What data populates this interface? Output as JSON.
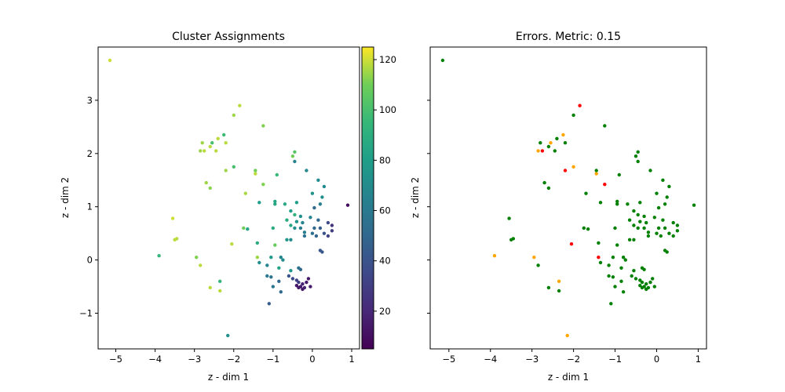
{
  "chart_data": [
    {
      "type": "scatter",
      "title": "Cluster Assignments",
      "xlabel": "z - dim 1",
      "ylabel": "z - dim 2",
      "xlim": [
        -5.45,
        1.2
      ],
      "ylim": [
        -1.67,
        4.0
      ],
      "xticks": [
        -5,
        -4,
        -3,
        -2,
        -1,
        0,
        1
      ],
      "yticks": [
        -1,
        0,
        1,
        2,
        3
      ],
      "colormap": "viridis",
      "colorbar": {
        "range": [
          5,
          125
        ],
        "ticks": [
          20,
          40,
          60,
          80,
          100,
          120
        ]
      },
      "points": [
        [
          -5.15,
          3.75,
          120
        ],
        [
          -1.85,
          2.9,
          118
        ],
        [
          -2.0,
          2.72,
          115
        ],
        [
          -1.25,
          2.52,
          112
        ],
        [
          -2.25,
          2.35,
          97
        ],
        [
          -2.4,
          2.28,
          118
        ],
        [
          -2.55,
          2.2,
          100
        ],
        [
          -2.2,
          2.2,
          118
        ],
        [
          -2.8,
          2.2,
          115
        ],
        [
          -2.6,
          2.13,
          118
        ],
        [
          -2.75,
          2.05,
          118
        ],
        [
          -2.85,
          2.05,
          115
        ],
        [
          -2.45,
          2.05,
          118
        ],
        [
          -0.45,
          2.03,
          104
        ],
        [
          -0.5,
          1.95,
          110
        ],
        [
          -2.0,
          1.75,
          100
        ],
        [
          -2.2,
          1.68,
          115
        ],
        [
          -1.45,
          1.68,
          110
        ],
        [
          -1.45,
          1.62,
          118
        ],
        [
          -0.9,
          1.6,
          95
        ],
        [
          -0.45,
          1.85,
          66
        ],
        [
          -0.15,
          1.68,
          68
        ],
        [
          0.15,
          1.5,
          70
        ],
        [
          -2.7,
          1.45,
          115
        ],
        [
          -2.6,
          1.35,
          113
        ],
        [
          -1.25,
          1.42,
          112
        ],
        [
          0.3,
          1.38,
          70
        ],
        [
          -1.7,
          1.25,
          116
        ],
        [
          0.0,
          1.25,
          74
        ],
        [
          0.25,
          1.18,
          72
        ],
        [
          -1.35,
          1.08,
          80
        ],
        [
          -0.95,
          1.1,
          85
        ],
        [
          -0.95,
          1.05,
          85
        ],
        [
          -0.7,
          1.05,
          86
        ],
        [
          -0.4,
          1.08,
          80
        ],
        [
          0.2,
          1.05,
          62
        ],
        [
          0.9,
          1.03,
          10
        ],
        [
          0.05,
          0.98,
          52
        ],
        [
          -0.55,
          0.92,
          80
        ],
        [
          -0.45,
          0.85,
          92
        ],
        [
          -0.3,
          0.82,
          72
        ],
        [
          -0.05,
          0.8,
          66
        ],
        [
          -3.55,
          0.78,
          120
        ],
        [
          -0.65,
          0.75,
          88
        ],
        [
          -0.4,
          0.72,
          74
        ],
        [
          -0.25,
          0.7,
          66
        ],
        [
          0.15,
          0.75,
          50
        ],
        [
          0.4,
          0.7,
          36
        ],
        [
          0.5,
          0.65,
          25
        ],
        [
          -0.55,
          0.65,
          85
        ],
        [
          -1.75,
          0.6,
          110
        ],
        [
          -1.65,
          0.58,
          84
        ],
        [
          -1.0,
          0.6,
          88
        ],
        [
          -0.45,
          0.6,
          72
        ],
        [
          -0.3,
          0.6,
          62
        ],
        [
          0.05,
          0.6,
          50
        ],
        [
          0.2,
          0.6,
          44
        ],
        [
          0.5,
          0.55,
          30
        ],
        [
          -0.2,
          0.52,
          62
        ],
        [
          0.3,
          0.5,
          40
        ],
        [
          0.0,
          0.5,
          55
        ],
        [
          -0.2,
          0.45,
          56
        ],
        [
          0.1,
          0.45,
          48
        ],
        [
          0.4,
          0.45,
          32
        ],
        [
          -3.45,
          0.4,
          118
        ],
        [
          -3.5,
          0.38,
          118
        ],
        [
          -0.65,
          0.38,
          76
        ],
        [
          -0.55,
          0.38,
          70
        ],
        [
          -2.05,
          0.3,
          118
        ],
        [
          -1.4,
          0.32,
          88
        ],
        [
          -0.95,
          0.28,
          108
        ],
        [
          0.2,
          0.18,
          42
        ],
        [
          0.25,
          0.15,
          42
        ],
        [
          -3.9,
          0.08,
          94
        ],
        [
          -2.95,
          0.05,
          112
        ],
        [
          -1.4,
          0.05,
          115
        ],
        [
          -1.05,
          0.05,
          78
        ],
        [
          -0.8,
          0.05,
          66
        ],
        [
          -0.75,
          0.0,
          70
        ],
        [
          -1.35,
          -0.05,
          72
        ],
        [
          -2.85,
          -0.1,
          118
        ],
        [
          -1.15,
          -0.1,
          66
        ],
        [
          -0.85,
          -0.15,
          84
        ],
        [
          -0.35,
          -0.15,
          55
        ],
        [
          -0.3,
          -0.18,
          50
        ],
        [
          -0.55,
          -0.2,
          76
        ],
        [
          -1.15,
          -0.3,
          60
        ],
        [
          -0.6,
          -0.3,
          40
        ],
        [
          -1.05,
          -0.32,
          56
        ],
        [
          -0.5,
          -0.35,
          36
        ],
        [
          -0.4,
          -0.38,
          32
        ],
        [
          -0.1,
          -0.35,
          14
        ],
        [
          -0.85,
          -0.4,
          50
        ],
        [
          -2.35,
          -0.4,
          95
        ],
        [
          -0.35,
          -0.42,
          30
        ],
        [
          -0.15,
          -0.42,
          14
        ],
        [
          -0.25,
          -0.45,
          18
        ],
        [
          -0.4,
          -0.48,
          14
        ],
        [
          -0.3,
          -0.5,
          14
        ],
        [
          -0.05,
          -0.5,
          16
        ],
        [
          -0.35,
          -0.52,
          14
        ],
        [
          -0.2,
          -0.52,
          18
        ],
        [
          -1.0,
          -0.5,
          58
        ],
        [
          -0.25,
          -0.55,
          15
        ],
        [
          -0.8,
          -0.6,
          50
        ],
        [
          -2.6,
          -0.52,
          118
        ],
        [
          -2.35,
          -0.58,
          118
        ],
        [
          -1.1,
          -0.82,
          45
        ],
        [
          -2.15,
          -1.42,
          72
        ]
      ]
    },
    {
      "type": "scatter",
      "title": "Errors. Metric: 0.15",
      "xlabel": "z - dim 1",
      "ylabel": "z - dim 2",
      "xlim": [
        -5.45,
        1.2
      ],
      "ylim": [
        -1.67,
        4.0
      ],
      "xticks": [
        -5,
        -4,
        -3,
        -2,
        -1,
        0,
        1
      ],
      "yticks": [
        -1,
        0,
        1,
        2,
        3
      ],
      "colors": {
        "green": "#008000",
        "orange": "#ffa500",
        "red": "#ff0000"
      },
      "points": [
        [
          -5.15,
          3.75,
          "green"
        ],
        [
          -1.85,
          2.9,
          "red"
        ],
        [
          -2.0,
          2.72,
          "green"
        ],
        [
          -1.25,
          2.52,
          "green"
        ],
        [
          -2.25,
          2.35,
          "orange"
        ],
        [
          -2.4,
          2.28,
          "green"
        ],
        [
          -2.55,
          2.2,
          "orange"
        ],
        [
          -2.2,
          2.2,
          "green"
        ],
        [
          -2.8,
          2.2,
          "green"
        ],
        [
          -2.6,
          2.13,
          "green"
        ],
        [
          -2.75,
          2.05,
          "red"
        ],
        [
          -2.85,
          2.05,
          "orange"
        ],
        [
          -2.45,
          2.05,
          "green"
        ],
        [
          -0.45,
          2.03,
          "green"
        ],
        [
          -0.5,
          1.95,
          "green"
        ],
        [
          -2.0,
          1.75,
          "orange"
        ],
        [
          -2.2,
          1.68,
          "red"
        ],
        [
          -1.45,
          1.68,
          "green"
        ],
        [
          -1.45,
          1.62,
          "orange"
        ],
        [
          -0.9,
          1.6,
          "green"
        ],
        [
          -0.45,
          1.85,
          "green"
        ],
        [
          -0.15,
          1.68,
          "green"
        ],
        [
          0.15,
          1.5,
          "green"
        ],
        [
          -2.7,
          1.45,
          "green"
        ],
        [
          -2.6,
          1.35,
          "green"
        ],
        [
          -1.25,
          1.42,
          "red"
        ],
        [
          0.3,
          1.38,
          "green"
        ],
        [
          -1.7,
          1.25,
          "green"
        ],
        [
          0.0,
          1.25,
          "green"
        ],
        [
          0.25,
          1.18,
          "green"
        ],
        [
          -1.35,
          1.08,
          "green"
        ],
        [
          -0.95,
          1.1,
          "green"
        ],
        [
          -0.95,
          1.05,
          "green"
        ],
        [
          -0.7,
          1.05,
          "green"
        ],
        [
          -0.4,
          1.08,
          "green"
        ],
        [
          0.2,
          1.05,
          "green"
        ],
        [
          0.9,
          1.03,
          "green"
        ],
        [
          0.05,
          0.98,
          "green"
        ],
        [
          -0.55,
          0.92,
          "green"
        ],
        [
          -0.45,
          0.85,
          "green"
        ],
        [
          -0.3,
          0.82,
          "green"
        ],
        [
          -0.05,
          0.8,
          "green"
        ],
        [
          -3.55,
          0.78,
          "green"
        ],
        [
          -0.65,
          0.75,
          "green"
        ],
        [
          -0.4,
          0.72,
          "green"
        ],
        [
          -0.25,
          0.7,
          "green"
        ],
        [
          0.15,
          0.75,
          "green"
        ],
        [
          0.4,
          0.7,
          "green"
        ],
        [
          0.5,
          0.65,
          "green"
        ],
        [
          -0.55,
          0.65,
          "green"
        ],
        [
          -1.75,
          0.6,
          "green"
        ],
        [
          -1.65,
          0.58,
          "green"
        ],
        [
          -1.0,
          0.6,
          "green"
        ],
        [
          -0.45,
          0.6,
          "green"
        ],
        [
          -0.3,
          0.6,
          "green"
        ],
        [
          0.05,
          0.6,
          "green"
        ],
        [
          0.2,
          0.6,
          "green"
        ],
        [
          0.5,
          0.55,
          "green"
        ],
        [
          -0.2,
          0.52,
          "green"
        ],
        [
          0.3,
          0.5,
          "green"
        ],
        [
          0.0,
          0.5,
          "green"
        ],
        [
          -0.2,
          0.45,
          "green"
        ],
        [
          0.1,
          0.45,
          "green"
        ],
        [
          0.4,
          0.45,
          "green"
        ],
        [
          -3.45,
          0.4,
          "green"
        ],
        [
          -3.5,
          0.38,
          "green"
        ],
        [
          -0.65,
          0.38,
          "green"
        ],
        [
          -0.55,
          0.38,
          "green"
        ],
        [
          -2.05,
          0.3,
          "red"
        ],
        [
          -1.4,
          0.32,
          "green"
        ],
        [
          -0.95,
          0.28,
          "green"
        ],
        [
          0.2,
          0.18,
          "green"
        ],
        [
          0.25,
          0.15,
          "green"
        ],
        [
          -3.9,
          0.08,
          "orange"
        ],
        [
          -2.95,
          0.05,
          "orange"
        ],
        [
          -1.4,
          0.05,
          "red"
        ],
        [
          -1.05,
          0.05,
          "green"
        ],
        [
          -0.8,
          0.05,
          "green"
        ],
        [
          -0.75,
          0.0,
          "green"
        ],
        [
          -1.35,
          -0.05,
          "green"
        ],
        [
          -2.85,
          -0.1,
          "green"
        ],
        [
          -1.15,
          -0.1,
          "green"
        ],
        [
          -0.85,
          -0.15,
          "green"
        ],
        [
          -0.35,
          -0.15,
          "green"
        ],
        [
          -0.3,
          -0.18,
          "green"
        ],
        [
          -0.55,
          -0.2,
          "green"
        ],
        [
          -1.15,
          -0.3,
          "green"
        ],
        [
          -0.6,
          -0.3,
          "green"
        ],
        [
          -1.05,
          -0.32,
          "green"
        ],
        [
          -0.5,
          -0.35,
          "green"
        ],
        [
          -0.4,
          -0.38,
          "green"
        ],
        [
          -0.1,
          -0.35,
          "green"
        ],
        [
          -0.85,
          -0.4,
          "green"
        ],
        [
          -2.35,
          -0.4,
          "orange"
        ],
        [
          -0.35,
          -0.42,
          "green"
        ],
        [
          -0.15,
          -0.42,
          "green"
        ],
        [
          -0.25,
          -0.45,
          "green"
        ],
        [
          -0.4,
          -0.48,
          "green"
        ],
        [
          -0.3,
          -0.5,
          "green"
        ],
        [
          -0.05,
          -0.5,
          "green"
        ],
        [
          -0.35,
          -0.52,
          "green"
        ],
        [
          -0.2,
          -0.52,
          "green"
        ],
        [
          -1.0,
          -0.5,
          "green"
        ],
        [
          -0.25,
          -0.55,
          "green"
        ],
        [
          -0.8,
          -0.6,
          "green"
        ],
        [
          -2.6,
          -0.52,
          "green"
        ],
        [
          -2.35,
          -0.58,
          "green"
        ],
        [
          -1.1,
          -0.82,
          "green"
        ],
        [
          -2.15,
          -1.42,
          "orange"
        ]
      ]
    }
  ]
}
